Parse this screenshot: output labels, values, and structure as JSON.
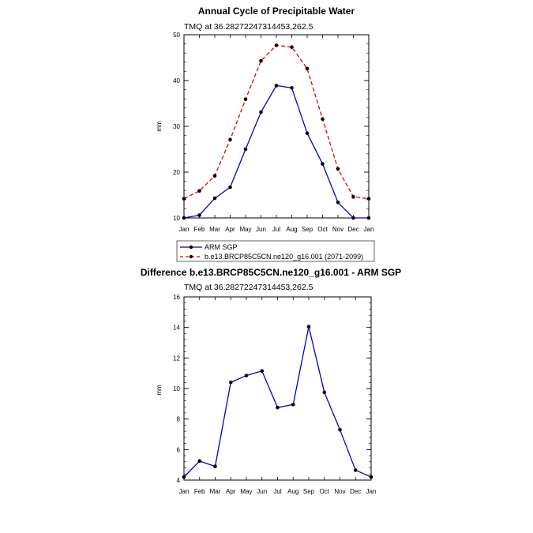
{
  "chart_data": [
    {
      "type": "line",
      "title": "Annual Cycle of Precipitable Water",
      "subtitle": "TMQ at 36.28272247314453,262.5",
      "xlabel": "",
      "ylabel": "mm",
      "ylim": [
        10,
        50
      ],
      "yticks": [
        10,
        20,
        30,
        40,
        50
      ],
      "categories": [
        "Jan",
        "Feb",
        "Mar",
        "Apr",
        "May",
        "Jun",
        "Jul",
        "Aug",
        "Sep",
        "Oct",
        "Nov",
        "Dec",
        "Jan"
      ],
      "series": [
        {
          "name": "ARM SGP",
          "color": "#0000cc",
          "style": "solid",
          "values": [
            10.0,
            10.6,
            14.3,
            16.7,
            25.0,
            33.1,
            38.9,
            38.4,
            28.5,
            21.8,
            13.4,
            10.0,
            10.0
          ]
        },
        {
          "name": "b.e13.BRCP85C5CN.ne120_g16.001 (2071-2099)",
          "color": "#dd0000",
          "style": "dashed",
          "values": [
            14.2,
            15.9,
            19.2,
            27.1,
            35.9,
            44.3,
            47.7,
            47.3,
            42.6,
            31.6,
            20.7,
            14.6,
            14.2
          ]
        }
      ],
      "legend_position": "below"
    },
    {
      "type": "line",
      "title": "Difference b.e13.BRCP85C5CN.ne120_g16.001 - ARM SGP",
      "subtitle": "TMQ at 36.28272247314453,262.5",
      "xlabel": "",
      "ylabel": "mm",
      "ylim": [
        4,
        16
      ],
      "yticks": [
        4,
        6,
        8,
        10,
        12,
        14,
        16
      ],
      "categories": [
        "Jan",
        "Feb",
        "Mar",
        "Apr",
        "May",
        "Jun",
        "Jul",
        "Aug",
        "Sep",
        "Oct",
        "Nov",
        "Dec",
        "Jan"
      ],
      "series": [
        {
          "name": "Difference",
          "color": "#0000cc",
          "style": "solid",
          "values": [
            4.2,
            5.25,
            4.9,
            10.4,
            10.85,
            11.15,
            8.75,
            8.95,
            14.05,
            9.75,
            7.3,
            4.65,
            4.2
          ]
        }
      ]
    }
  ]
}
